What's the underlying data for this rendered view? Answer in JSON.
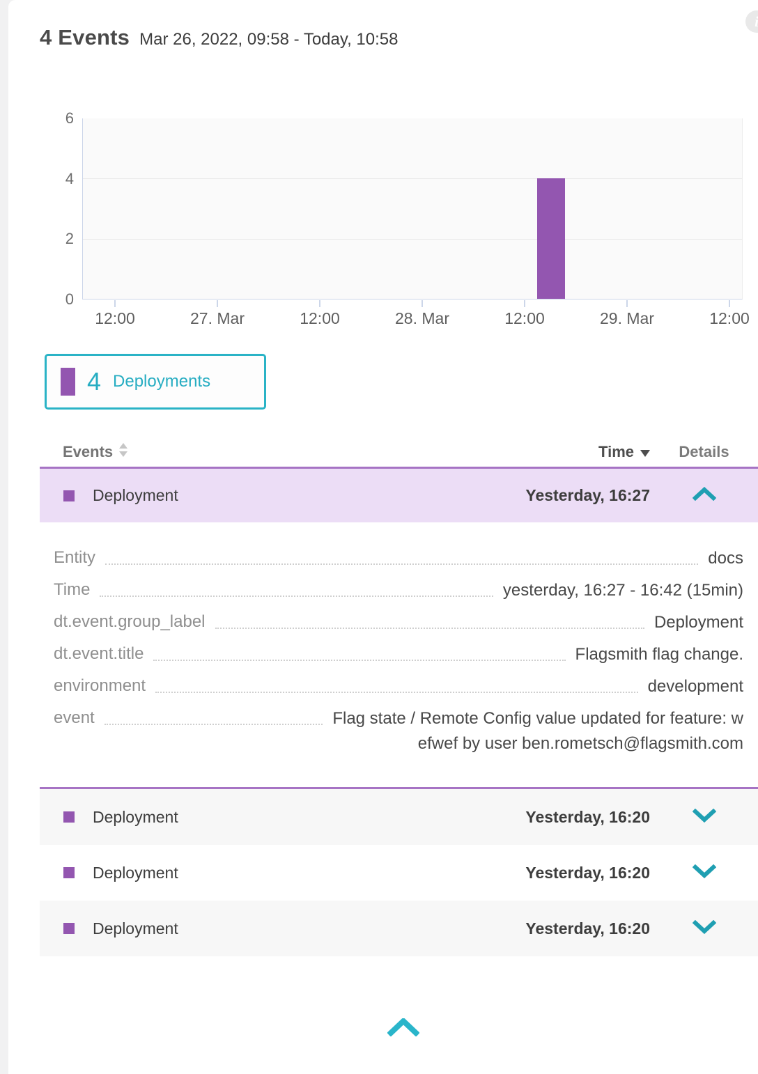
{
  "header": {
    "title": "4 Events",
    "timeframe": "Mar 26, 2022, 09:58 - Today, 10:58"
  },
  "colors": {
    "accent_teal": "#2ab3c6",
    "row_chevron_teal": "#1f9fb2",
    "purple": "#9356b0",
    "purple_row_bg": "#ecddf6",
    "purple_border": "#a673c4",
    "shaded_row_bg": "#f7f7f7"
  },
  "chart_data": {
    "type": "bar",
    "title": "",
    "xlabel": "",
    "ylabel": "",
    "ylim": [
      0,
      6
    ],
    "grid": "horizontal",
    "legend_position": "below-left",
    "yticklabels": [
      "6",
      "4",
      "2",
      "0"
    ],
    "xticklabels": [
      "12:00",
      "27. Mar",
      "12:00",
      "28. Mar",
      "12:00",
      "29. Mar",
      "12:00"
    ],
    "x_range": "Mar 26, 2022 09:58 - Mar 29, 2022 10:58",
    "series": [
      {
        "name": "Deployments",
        "color": "#9356b0",
        "points": [
          {
            "x": "Mar 28, ~16:20",
            "y": 4
          }
        ]
      }
    ],
    "bar_render": {
      "value": 4,
      "ymax": 6,
      "x_fraction": 0.689,
      "width_fraction": 0.0422
    }
  },
  "legend": {
    "count": "4",
    "label": "Deployments"
  },
  "info_icon_glyph": "i",
  "table": {
    "headers": {
      "events": "Events",
      "time": "Time",
      "details": "Details"
    },
    "rows": [
      {
        "event": "Deployment",
        "time": "Yesterday, 16:27",
        "state": "expanded"
      },
      {
        "event": "Deployment",
        "time": "Yesterday, 16:20",
        "state": "collapsed"
      },
      {
        "event": "Deployment",
        "time": "Yesterday, 16:20",
        "state": "collapsed"
      },
      {
        "event": "Deployment",
        "time": "Yesterday, 16:20",
        "state": "collapsed"
      }
    ]
  },
  "details": {
    "fields": [
      {
        "label": "Entity",
        "value": "docs"
      },
      {
        "label": "Time",
        "value": "yesterday, 16:27 - 16:42 (15min)"
      },
      {
        "label": "dt.event.group_label",
        "value": "Deployment"
      },
      {
        "label": "dt.event.title",
        "value": "Flagsmith flag change."
      },
      {
        "label": "environment",
        "value": "development"
      },
      {
        "label": "event",
        "value": "Flag state / Remote Config value updated for feature: wefwef by user ben.rometsch@flagsmith.com"
      }
    ]
  }
}
